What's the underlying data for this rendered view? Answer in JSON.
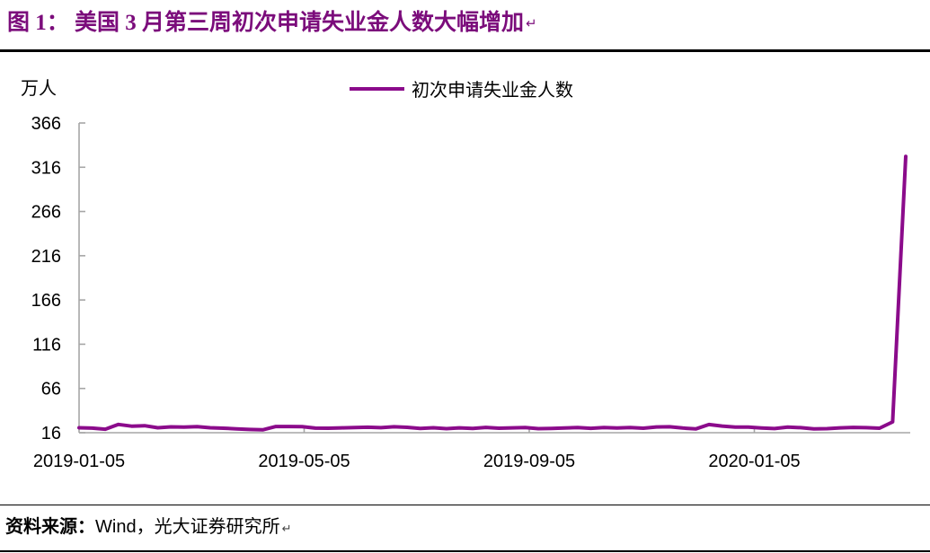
{
  "header": {
    "title": "图 1：  美国 3 月第三周初次申请失业金人数大幅增加",
    "paragraph_mark": "↵"
  },
  "footer": {
    "source_label": "资料来源：",
    "source_value": "Wind，光大证券研究所",
    "paragraph_mark": "↵"
  },
  "colors": {
    "title_purple": "#7B0C7B",
    "line_purple": "#8B0B8B",
    "axis_gray": "#A6A6A6",
    "rule_black": "#000000"
  },
  "chart_data": {
    "type": "line",
    "title": "美国 3 月第三周初次申请失业金人数大幅增加",
    "unit_label": "万人",
    "legend_label": "初次申请失业金人数",
    "legend_position": "top-center",
    "grid": false,
    "line_color": "#8B0B8B",
    "ylim": [
      16,
      366
    ],
    "yticks": [
      366,
      316,
      266,
      216,
      166,
      116,
      66,
      16
    ],
    "xtick_labels": [
      "2019-01-05",
      "2019-05-05",
      "2019-09-05",
      "2020-01-05"
    ],
    "x": [
      "2019-01-05",
      "2019-01-12",
      "2019-01-19",
      "2019-01-26",
      "2019-02-02",
      "2019-02-09",
      "2019-02-16",
      "2019-02-23",
      "2019-03-02",
      "2019-03-09",
      "2019-03-16",
      "2019-03-23",
      "2019-03-30",
      "2019-04-06",
      "2019-04-13",
      "2019-04-20",
      "2019-04-27",
      "2019-05-04",
      "2019-05-11",
      "2019-05-18",
      "2019-05-25",
      "2019-06-01",
      "2019-06-08",
      "2019-06-15",
      "2019-06-22",
      "2019-06-29",
      "2019-07-06",
      "2019-07-13",
      "2019-07-20",
      "2019-07-27",
      "2019-08-03",
      "2019-08-10",
      "2019-08-17",
      "2019-08-24",
      "2019-08-31",
      "2019-09-07",
      "2019-09-14",
      "2019-09-21",
      "2019-09-28",
      "2019-10-05",
      "2019-10-12",
      "2019-10-19",
      "2019-10-26",
      "2019-11-02",
      "2019-11-09",
      "2019-11-16",
      "2019-11-23",
      "2019-11-30",
      "2019-12-07",
      "2019-12-14",
      "2019-12-21",
      "2019-12-28",
      "2020-01-04",
      "2020-01-11",
      "2020-01-18",
      "2020-01-25",
      "2020-02-01",
      "2020-02-08",
      "2020-02-15",
      "2020-02-22",
      "2020-02-29",
      "2020-03-07",
      "2020-03-14",
      "2020-03-21"
    ],
    "values": [
      21.6,
      21.2,
      20.0,
      25.3,
      23.4,
      23.9,
      21.6,
      22.6,
      22.3,
      22.9,
      21.6,
      21.1,
      20.4,
      19.7,
      19.2,
      23.0,
      23.0,
      22.8,
      21.2,
      21.1,
      21.5,
      21.8,
      22.2,
      21.7,
      22.7,
      22.1,
      20.9,
      21.6,
      20.6,
      21.5,
      20.9,
      22.0,
      21.1,
      21.5,
      21.8,
      20.6,
      20.8,
      21.3,
      21.9,
      21.0,
      21.8,
      21.3,
      21.8,
      21.1,
      22.5,
      22.7,
      21.3,
      20.3,
      25.2,
      23.5,
      22.4,
      22.3,
      21.4,
      20.7,
      22.3,
      21.7,
      20.3,
      20.6,
      21.5,
      22.0,
      21.7,
      21.1,
      28.2,
      328.3
    ]
  }
}
